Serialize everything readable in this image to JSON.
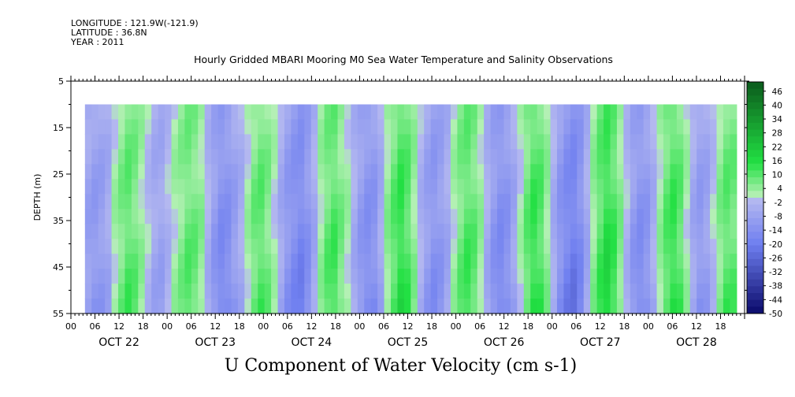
{
  "header": {
    "longitude": "LONGITUDE : 121.9W(-121.9)",
    "latitude": "LATITUDE : 36.8N",
    "year": "YEAR : 2011"
  },
  "chart_data": {
    "type": "heatmap",
    "title": "Hourly Gridded MBARI Mooring M0 Sea Water Temperature and Salinity Observations",
    "variable_label": "U Component of Water Velocity (cm s-1)",
    "ylabel": "DEPTH (m)",
    "ylim": [
      5,
      55
    ],
    "y_inverted": true,
    "y_ticks": [
      5,
      15,
      25,
      35,
      45,
      55
    ],
    "data_depth_range": [
      10,
      55
    ],
    "x_ticks": [
      "00",
      "06",
      "12",
      "18",
      "00",
      "06",
      "12",
      "18",
      "00",
      "06",
      "12",
      "18",
      "00",
      "06",
      "12",
      "18",
      "00",
      "06",
      "12",
      "18",
      "00",
      "06",
      "12",
      "18",
      "00",
      "06",
      "12",
      "18"
    ],
    "x_day_labels": [
      "OCT 22",
      "OCT 23",
      "OCT 24",
      "OCT 25",
      "OCT 26",
      "OCT 27",
      "OCT 28"
    ],
    "x_range_hours": [
      0,
      168
    ],
    "data_hour_range": [
      3.5,
      166
    ],
    "colorbar": {
      "min": -50,
      "max": 50,
      "tick_labels": [
        "46",
        "40",
        "34",
        "28",
        "22",
        "16",
        "10",
        "4",
        "-2",
        "-8",
        "-14",
        "-20",
        "-26",
        "-32",
        "-38",
        "-44",
        "-50"
      ],
      "colors": {
        "low": "#0a0a6a",
        "mid_low": "#6f7ff0",
        "neutral_low": "#b4b8f0",
        "neutral_high": "#b4f0b4",
        "mid_high": "#22e043",
        "high": "#0b5a1c"
      }
    },
    "column_values": [
      -8,
      -10,
      -9,
      -6,
      2,
      6,
      9,
      7,
      3,
      -2,
      -6,
      -7,
      -3,
      2,
      5,
      8,
      7,
      4,
      -4,
      -10,
      -14,
      -13,
      -9,
      -5,
      2,
      7,
      9,
      6,
      1,
      -6,
      -11,
      -14,
      -16,
      -12,
      -6,
      3,
      8,
      10,
      6,
      2,
      -5,
      -10,
      -13,
      -12,
      -6,
      4,
      9,
      13,
      10,
      4,
      -4,
      -9,
      -12,
      -10,
      -6,
      2,
      7,
      10,
      8,
      3,
      -5,
      -11,
      -14,
      -12,
      -7,
      1,
      8,
      12,
      10,
      4,
      -5,
      -12,
      -16,
      -18,
      -14,
      -6,
      4,
      10,
      14,
      11,
      5,
      -3,
      -10,
      -13,
      -11,
      -5,
      3,
      9,
      12,
      9,
      2,
      -6,
      -10,
      -8,
      -2,
      5,
      9,
      8
    ]
  }
}
